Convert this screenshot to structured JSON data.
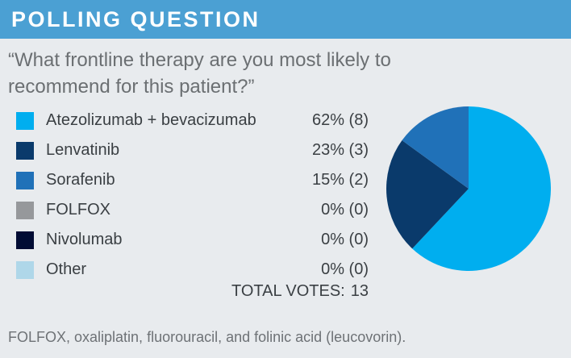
{
  "header": {
    "title": "POLLING QUESTION",
    "bg_color": "#4BA0D3",
    "text_color": "#FFFFFF"
  },
  "question": {
    "text": "“What frontline therapy are you most likely to recommend for this patient?”"
  },
  "legend": {
    "items": [
      {
        "label": "Atezolizumab + bevacizumab",
        "value": "62% (8)",
        "color": "#00AEEF"
      },
      {
        "label": "Lenvatinib",
        "value": "23% (3)",
        "color": "#0A3A6B"
      },
      {
        "label": "Sorafenib",
        "value": "15% (2)",
        "color": "#2071B8"
      },
      {
        "label": "FOLFOX",
        "value": "0% (0)",
        "color": "#96989B"
      },
      {
        "label": "Nivolumab",
        "value": "0% (0)",
        "color": "#010C34"
      },
      {
        "label": "Other",
        "value": "0% (0)",
        "color": "#AFD7E9"
      }
    ]
  },
  "total": {
    "label": "TOTAL VOTES:",
    "value": "13"
  },
  "footnote": {
    "text": "FOLFOX, oxaliplatin, fluorouracil, and folinic acid (leucovorin)."
  },
  "chart_data": {
    "type": "pie",
    "title": "POLLING QUESTION",
    "question": "“What frontline therapy are you most likely to recommend for this patient?”",
    "categories": [
      "Atezolizumab + bevacizumab",
      "Lenvatinib",
      "Sorafenib",
      "FOLFOX",
      "Nivolumab",
      "Other"
    ],
    "values_pct": [
      62,
      23,
      15,
      0,
      0,
      0
    ],
    "votes": [
      8,
      3,
      2,
      0,
      0,
      0
    ],
    "total_votes": 13,
    "colors": [
      "#00AEEF",
      "#0A3A6B",
      "#2071B8",
      "#96989B",
      "#010C34",
      "#AFD7E9"
    ],
    "start_angle_deg": 0,
    "direction": "clockwise",
    "legend_position": "left",
    "footnote": "FOLFOX, oxaliplatin, fluorouracil, and folinic acid (leucovorin)."
  }
}
